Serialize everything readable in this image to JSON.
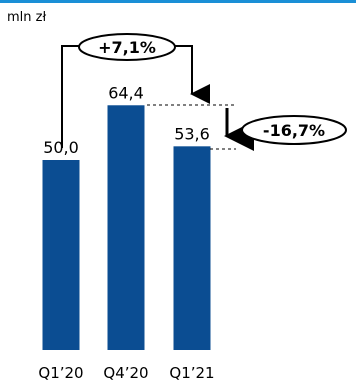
{
  "unit_label": "mln zł",
  "colors": {
    "bar": "#0b4d92",
    "top_rule": "#1a8fd6",
    "annotation": "#000000"
  },
  "chart_data": {
    "type": "bar",
    "categories": [
      "Q1’20",
      "Q4’20",
      "Q1’21"
    ],
    "values": [
      50.0,
      64.4,
      53.6
    ],
    "value_labels": [
      "50,0",
      "64,4",
      "53,6"
    ],
    "ylabel": "mln zł",
    "grid": false,
    "annotations": [
      {
        "text": "+7,1%",
        "from": "Q1’20",
        "to": "Q1’21",
        "kind": "bracket-arrow"
      },
      {
        "text": "-16,7%",
        "from": "Q4’20",
        "to": "Q1’21",
        "kind": "down-arrow"
      }
    ]
  }
}
